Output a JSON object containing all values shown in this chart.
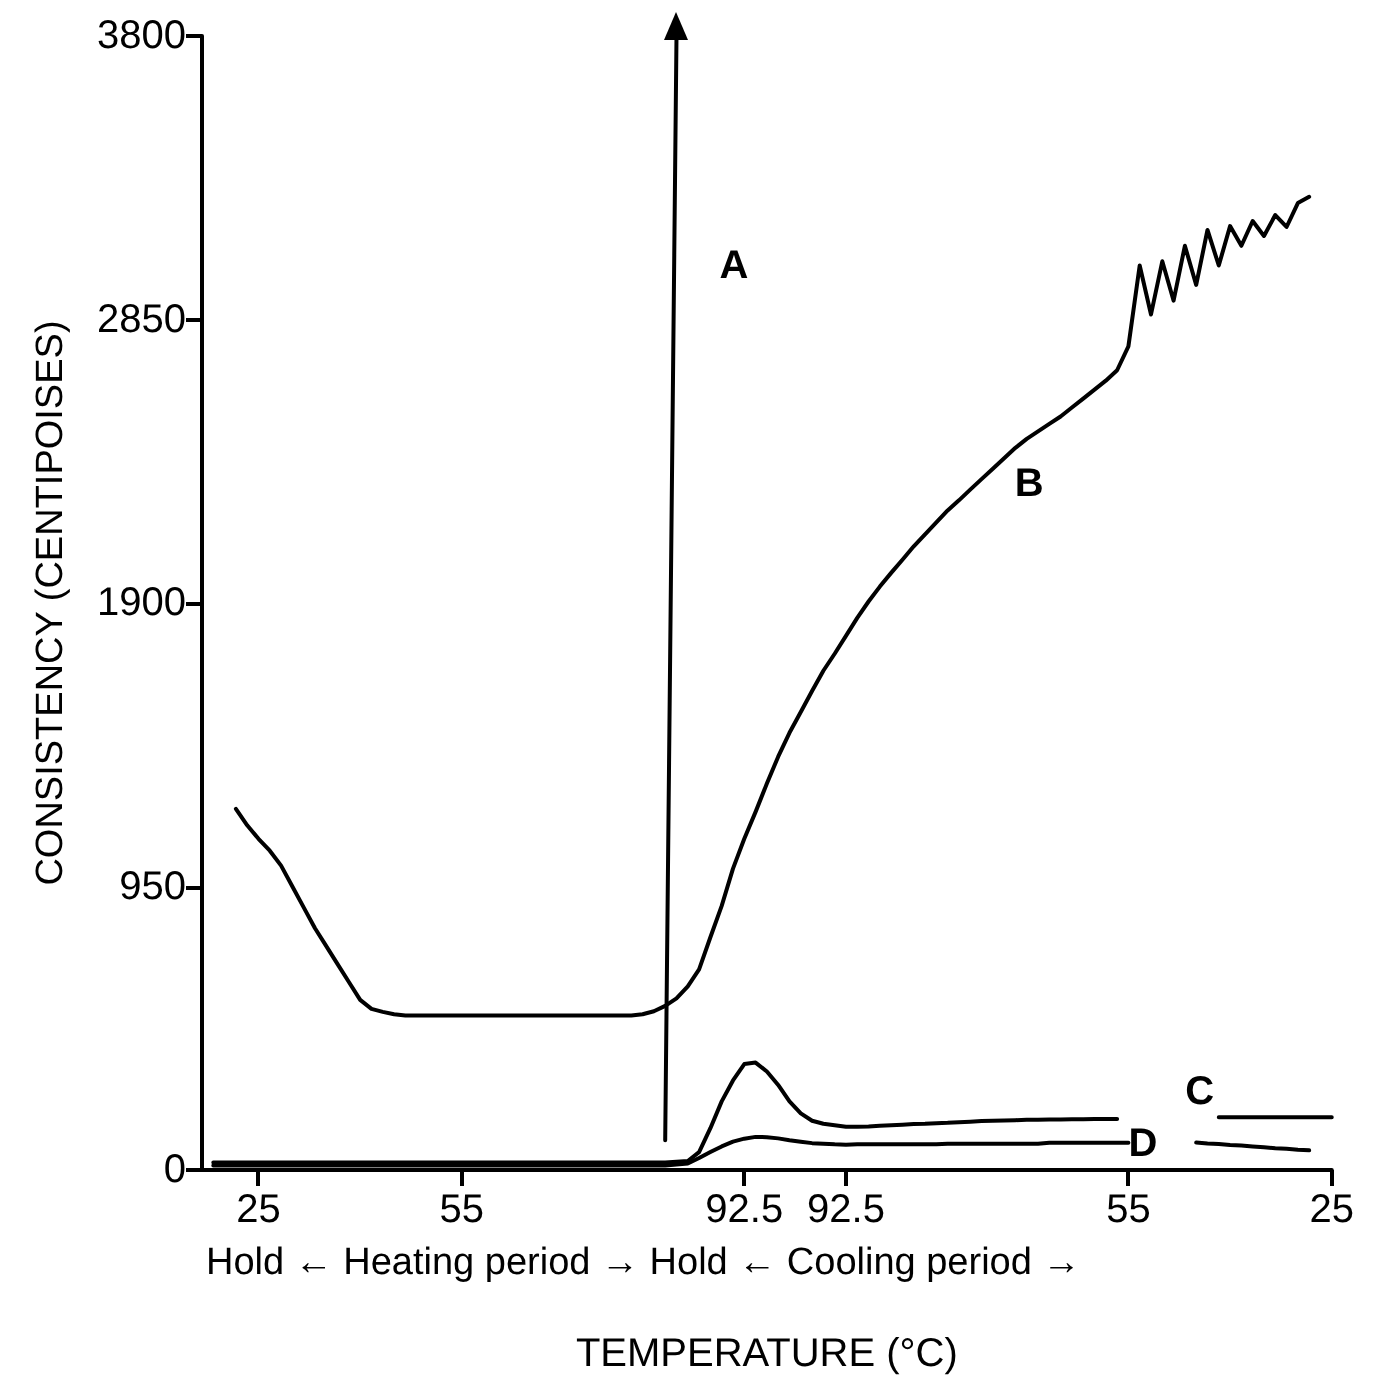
{
  "chart_data": {
    "type": "line",
    "xlabel": "TEMPERATURE (°C)",
    "ylabel": "CONSISTENCY (CENTIPOISES)",
    "categories": [
      null,
      null,
      null,
      null,
      null,
      "25",
      null,
      null,
      null,
      null,
      null,
      null,
      null,
      null,
      null,
      null,
      null,
      null,
      null,
      null,
      null,
      null,
      null,
      "55",
      null,
      null,
      null,
      null,
      null,
      null,
      null,
      null,
      null,
      null,
      null,
      null,
      null,
      null,
      null,
      null,
      null,
      null,
      null,
      null,
      null,
      null,
      null,
      null,
      "92.5",
      null,
      null,
      null,
      null,
      null,
      null,
      null,
      null,
      "92.5",
      null,
      null,
      null,
      null,
      null,
      null,
      null,
      null,
      null,
      null,
      null,
      null,
      null,
      null,
      null,
      null,
      null,
      null,
      null,
      null,
      null,
      null,
      null,
      null,
      "55",
      null,
      null,
      null,
      null,
      null,
      null,
      null,
      null,
      null,
      null,
      null,
      null,
      null,
      null,
      null,
      null,
      null,
      "25"
    ],
    "ylim": [
      0,
      3800
    ],
    "yticks": [
      0,
      950,
      1900,
      2850,
      3800
    ],
    "grid": false,
    "marker": "none",
    "line_style": "solid",
    "series": [
      {
        "name": "A",
        "color": "#000000",
        "values": [
          null,
          null,
          null,
          null,
          null,
          null,
          null,
          null,
          null,
          null,
          null,
          null,
          null,
          null,
          null,
          null,
          null,
          null,
          null,
          null,
          null,
          null,
          null,
          null,
          null,
          null,
          null,
          null,
          null,
          null,
          null,
          null,
          null,
          null,
          null,
          null,
          null,
          null,
          null,
          null,
          null,
          100,
          3800,
          null,
          null,
          null,
          null,
          null,
          null,
          null,
          null,
          null,
          null,
          null,
          null,
          null,
          null,
          null,
          null,
          null,
          null,
          null,
          null,
          null,
          null,
          null,
          null,
          null,
          null,
          null,
          null,
          null,
          null,
          null,
          null,
          null,
          null,
          null,
          null,
          null,
          null,
          null,
          null,
          null,
          null,
          null,
          null,
          null,
          null,
          null,
          null,
          null,
          null,
          null,
          null,
          null,
          null,
          null,
          null,
          null,
          null
        ]
      },
      {
        "name": "B",
        "color": "#000000",
        "values": [
          null,
          null,
          null,
          1210,
          1155,
          1110,
          1070,
          1020,
          950,
          880,
          810,
          750,
          690,
          630,
          570,
          540,
          530,
          522,
          518,
          518,
          518,
          518,
          518,
          518,
          518,
          518,
          518,
          518,
          518,
          518,
          518,
          518,
          518,
          518,
          518,
          518,
          518,
          518,
          518,
          522,
          532,
          550,
          575,
          615,
          672,
          780,
          885,
          1010,
          1110,
          1200,
          1295,
          1385,
          1465,
          1535,
          1605,
          1673,
          1730,
          1790,
          1850,
          1905,
          1955,
          2001,
          2045,
          2090,
          2130,
          2170,
          2210,
          2244,
          2280,
          2315,
          2350,
          2385,
          2420,
          2450,
          2475,
          2500,
          2525,
          2555,
          2585,
          2615,
          2645,
          2680,
          2760,
          3031,
          2867,
          3045,
          2913,
          3097,
          2966,
          3150,
          3031,
          3163,
          3097,
          3180,
          3130,
          3200,
          3160,
          3240,
          3261,
          null,
          null
        ]
      },
      {
        "name": "C",
        "color": "#000000",
        "values": [
          null,
          25,
          25,
          25,
          25,
          25,
          25,
          25,
          25,
          25,
          25,
          25,
          25,
          25,
          25,
          25,
          25,
          25,
          25,
          25,
          25,
          25,
          25,
          25,
          25,
          25,
          25,
          25,
          25,
          25,
          25,
          25,
          25,
          25,
          25,
          25,
          25,
          25,
          25,
          25,
          25,
          25,
          28,
          30,
          60,
          140,
          230,
          300,
          355,
          360,
          330,
          285,
          230,
          190,
          165,
          155,
          150,
          145,
          145,
          146,
          148,
          150,
          152,
          154,
          155,
          157,
          158,
          160,
          162,
          164,
          165,
          166,
          167,
          168,
          168,
          169,
          169,
          170,
          170,
          171,
          171,
          171,
          null,
          null,
          null,
          null,
          null,
          null,
          null,
          null,
          177,
          177,
          177,
          177,
          177,
          177,
          177,
          177,
          177,
          177,
          177
        ]
      },
      {
        "name": "D",
        "color": "#000000",
        "values": [
          null,
          15,
          15,
          15,
          15,
          15,
          15,
          15,
          15,
          15,
          15,
          15,
          15,
          15,
          15,
          15,
          15,
          15,
          15,
          15,
          15,
          15,
          15,
          15,
          15,
          15,
          15,
          15,
          15,
          15,
          15,
          15,
          15,
          15,
          15,
          15,
          15,
          15,
          15,
          15,
          15,
          15,
          18,
          22,
          40,
          60,
          79,
          95,
          105,
          111,
          110,
          106,
          100,
          95,
          90,
          88,
          86,
          85,
          86,
          86,
          86,
          86,
          86,
          86,
          86,
          86,
          88,
          88,
          88,
          88,
          88,
          88,
          88,
          88,
          88,
          91,
          91,
          91,
          91,
          91,
          91,
          91,
          91,
          null,
          null,
          null,
          null,
          null,
          92,
          89,
          87,
          84,
          82,
          79,
          76,
          73,
          71,
          68,
          66,
          null,
          null
        ]
      }
    ],
    "annotations": [
      "Hold ← Heating period → Hold ← Cooling period →"
    ]
  }
}
